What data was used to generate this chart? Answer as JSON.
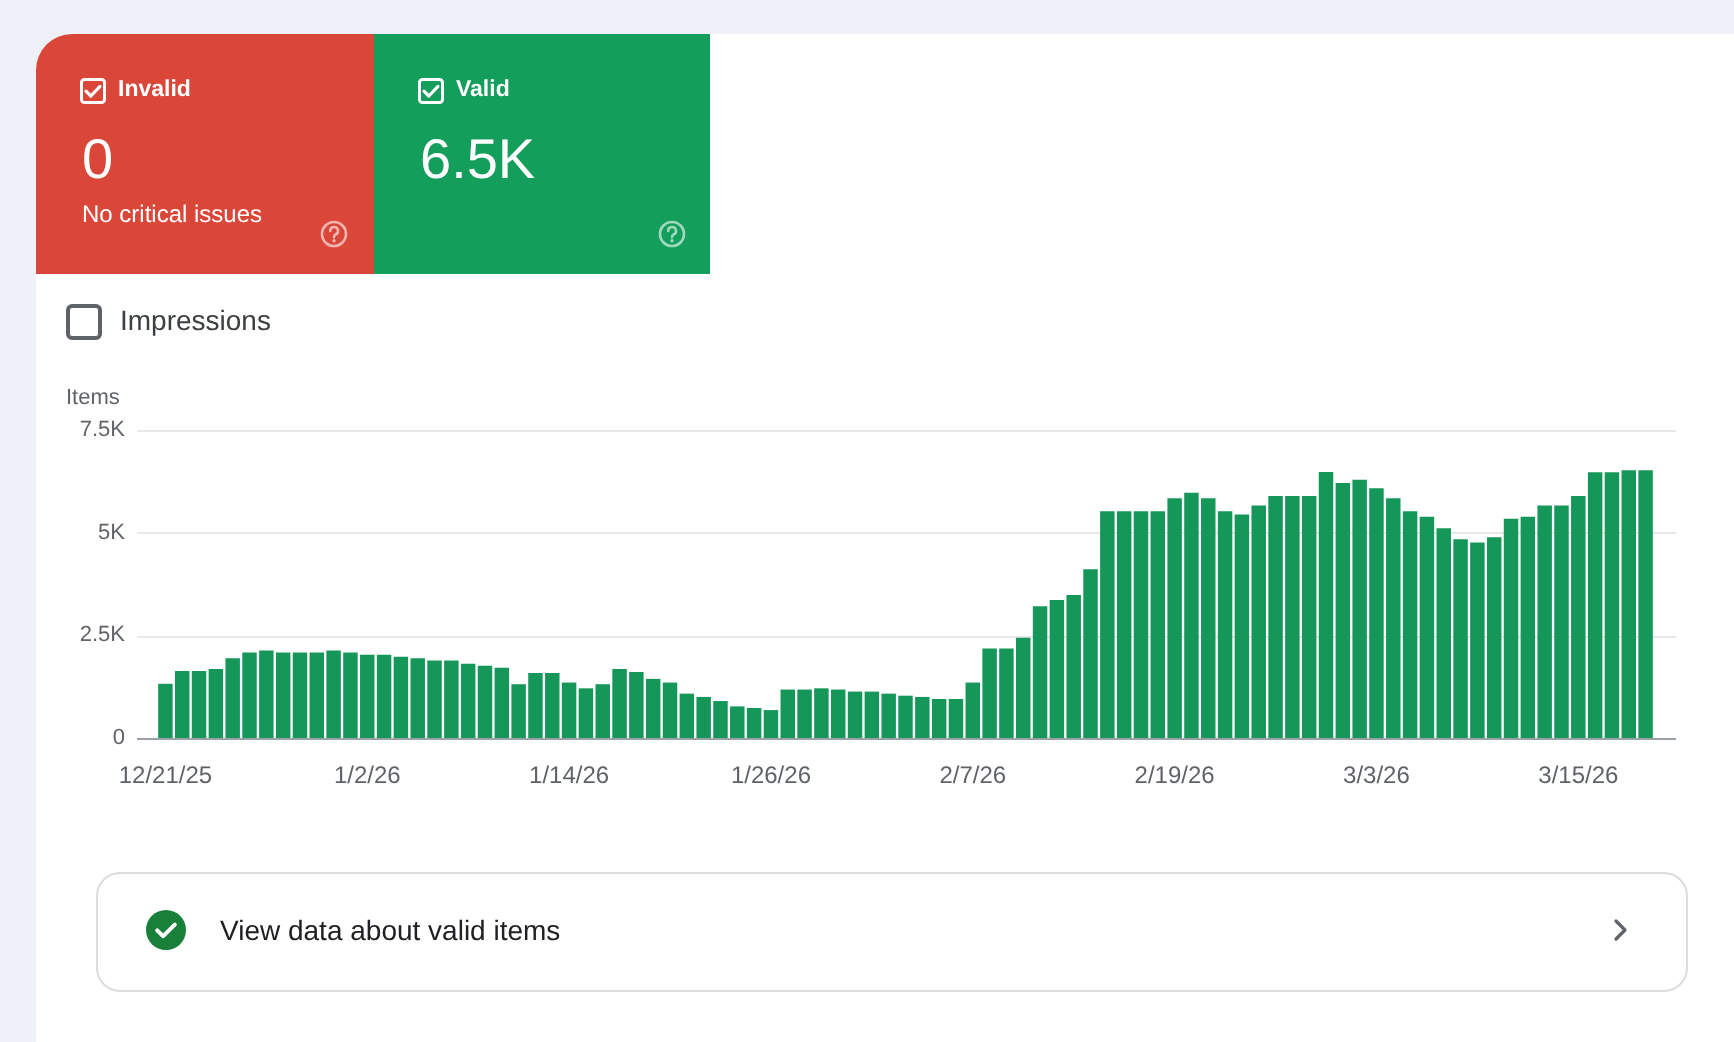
{
  "chart_data": [
    {
      "type": "other",
      "categories": [
        "Invalid",
        "Valid"
      ],
      "value_labels": [
        "0",
        "6.5K"
      ],
      "colors": [
        "#da4638",
        "#139f5b"
      ],
      "annotations": [
        "No critical issues"
      ]
    },
    {
      "type": "bar",
      "ylabel": "Items",
      "categories": [
        "12/21/25",
        null,
        null,
        null,
        null,
        null,
        null,
        null,
        null,
        null,
        null,
        null,
        "1/2/26",
        null,
        null,
        null,
        null,
        null,
        null,
        null,
        null,
        null,
        null,
        null,
        "1/14/26",
        null,
        null,
        null,
        null,
        null,
        null,
        null,
        null,
        null,
        null,
        null,
        "1/26/26",
        null,
        null,
        null,
        null,
        null,
        null,
        null,
        null,
        null,
        null,
        null,
        "2/7/26",
        null,
        null,
        null,
        null,
        null,
        null,
        null,
        null,
        null,
        null,
        null,
        "2/19/26",
        null,
        null,
        null,
        null,
        null,
        null,
        null,
        null,
        null,
        null,
        null,
        "3/3/26",
        null,
        null,
        null,
        null,
        null,
        null,
        null,
        null,
        null,
        null,
        null,
        "3/15/26",
        null,
        null,
        null,
        null
      ],
      "values": [
        1320,
        1630,
        1630,
        1680,
        1940,
        2080,
        2130,
        2080,
        2080,
        2080,
        2130,
        2080,
        2030,
        2030,
        1980,
        1940,
        1890,
        1890,
        1810,
        1760,
        1710,
        1310,
        1580,
        1580,
        1350,
        1210,
        1310,
        1680,
        1610,
        1440,
        1350,
        1080,
        1000,
        900,
        770,
        730,
        680,
        1180,
        1180,
        1210,
        1180,
        1130,
        1130,
        1080,
        1030,
        1000,
        950,
        950,
        1350,
        2180,
        2180,
        2440,
        3210,
        3360,
        3480,
        4110,
        5520,
        5520,
        5520,
        5520,
        5840,
        5970,
        5840,
        5520,
        5440,
        5660,
        5890,
        5890,
        5890,
        6480,
        6210,
        6290,
        6080,
        5840,
        5520,
        5390,
        5110,
        4840,
        4760,
        4890,
        5340,
        5390,
        5660,
        5660,
        5890,
        6470,
        6470,
        6520,
        6520
      ],
      "color": "#16975a",
      "ylim": [
        0,
        7500
      ],
      "yticks": [
        0,
        {
          "value": 2500,
          "label": "2.5K"
        },
        {
          "value": 5000,
          "label": "5K"
        },
        {
          "value": 7500,
          "label": "7.5K"
        }
      ],
      "grid": "y",
      "annotations": [
        "Impressions",
        "View data about valid items"
      ]
    }
  ]
}
